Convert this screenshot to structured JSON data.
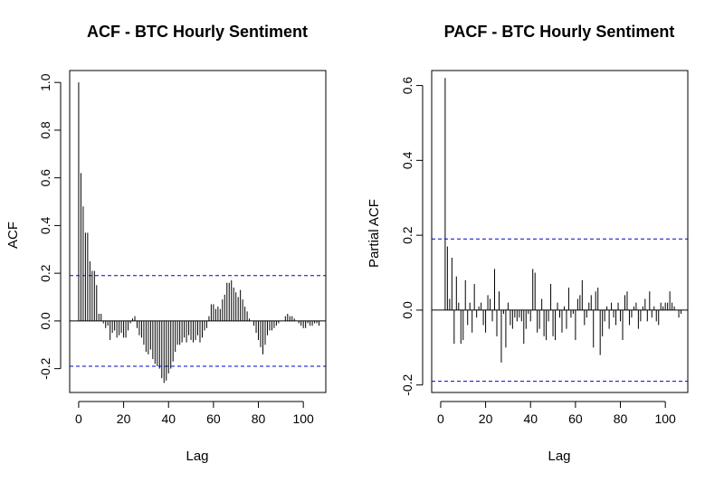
{
  "chart_data": [
    {
      "type": "bar",
      "title": "ACF - BTC Hourly Sentiment",
      "xlabel": "Lag",
      "ylabel": "ACF",
      "xlim": [
        -4,
        110
      ],
      "ylim": [
        -0.3,
        1.05
      ],
      "x_ticks": [
        0,
        20,
        40,
        60,
        80,
        100
      ],
      "y_ticks": [
        -0.2,
        0.0,
        0.2,
        0.4,
        0.6,
        0.8,
        1.0
      ],
      "y_tick_labels": [
        "-0.2",
        "0.0",
        "0.2",
        "0.4",
        "0.6",
        "0.8",
        "1.0"
      ],
      "confidence_bounds": [
        0.19,
        -0.19
      ],
      "bound_color": "#0000cc",
      "bar_color": "#000000",
      "grid": false,
      "lag_start": 0,
      "values": [
        1.0,
        0.62,
        0.48,
        0.37,
        0.37,
        0.25,
        0.21,
        0.21,
        0.15,
        0.03,
        0.03,
        -0.01,
        -0.03,
        -0.02,
        -0.08,
        -0.05,
        -0.04,
        -0.07,
        -0.06,
        -0.05,
        -0.07,
        -0.07,
        -0.04,
        -0.01,
        0.01,
        0.02,
        -0.03,
        -0.06,
        -0.07,
        -0.1,
        -0.13,
        -0.14,
        -0.12,
        -0.16,
        -0.18,
        -0.19,
        -0.2,
        -0.24,
        -0.26,
        -0.25,
        -0.22,
        -0.2,
        -0.17,
        -0.13,
        -0.1,
        -0.1,
        -0.09,
        -0.07,
        -0.09,
        -0.06,
        -0.08,
        -0.09,
        -0.08,
        -0.06,
        -0.09,
        -0.07,
        -0.04,
        -0.03,
        0.02,
        0.07,
        0.07,
        0.05,
        0.06,
        0.05,
        0.09,
        0.11,
        0.16,
        0.16,
        0.17,
        0.14,
        0.12,
        0.1,
        0.13,
        0.09,
        0.06,
        0.04,
        0.01,
        0.0,
        -0.02,
        -0.05,
        -0.08,
        -0.11,
        -0.14,
        -0.1,
        -0.06,
        -0.04,
        -0.04,
        -0.03,
        -0.02,
        -0.01,
        0.0,
        0.0,
        0.02,
        0.03,
        0.02,
        0.02,
        0.01,
        0.0,
        -0.01,
        -0.02,
        -0.03,
        -0.03,
        -0.01,
        -0.02,
        -0.02,
        -0.01,
        -0.01,
        -0.02
      ]
    },
    {
      "type": "bar",
      "title": "PACF - BTC Hourly Sentiment",
      "xlabel": "Lag",
      "ylabel": "Partial ACF",
      "xlim": [
        -4,
        110
      ],
      "ylim": [
        -0.22,
        0.64
      ],
      "x_ticks": [
        0,
        20,
        40,
        60,
        80,
        100
      ],
      "y_ticks": [
        -0.2,
        0.0,
        0.2,
        0.4,
        0.6
      ],
      "y_tick_labels": [
        "-0.2",
        "0.0",
        "0.2",
        "0.4",
        "0.6"
      ],
      "confidence_bounds": [
        0.19,
        -0.19
      ],
      "bound_color": "#0000cc",
      "bar_color": "#000000",
      "grid": false,
      "lag_start": 2,
      "values": [
        0.62,
        0.17,
        0.03,
        0.14,
        -0.09,
        0.09,
        0.02,
        -0.09,
        -0.08,
        0.08,
        -0.04,
        0.02,
        -0.06,
        0.07,
        -0.02,
        0.01,
        0.02,
        -0.04,
        -0.06,
        0.04,
        0.03,
        -0.03,
        0.11,
        -0.07,
        0.05,
        -0.14,
        -0.01,
        -0.1,
        0.02,
        -0.04,
        -0.05,
        -0.02,
        -0.03,
        -0.02,
        -0.03,
        -0.09,
        -0.05,
        -0.01,
        -0.03,
        0.11,
        0.1,
        -0.06,
        -0.05,
        0.03,
        -0.07,
        -0.08,
        -0.03,
        0.07,
        -0.07,
        -0.08,
        0.02,
        -0.02,
        -0.06,
        0.01,
        -0.05,
        0.06,
        -0.02,
        -0.01,
        -0.08,
        0.03,
        0.04,
        0.08,
        -0.04,
        -0.02,
        0.02,
        0.04,
        -0.1,
        0.05,
        0.06,
        -0.12,
        -0.07,
        -0.03,
        0.01,
        -0.05,
        0.02,
        -0.02,
        -0.04,
        0.02,
        -0.03,
        -0.08,
        0.04,
        0.05,
        -0.04,
        -0.02,
        0.01,
        0.02,
        -0.05,
        -0.03,
        0.01,
        0.03,
        -0.03,
        0.05,
        -0.02,
        0.01,
        -0.03,
        -0.04,
        0.02,
        0.01,
        0.02,
        0.02,
        0.05,
        0.02,
        0.01,
        0.0,
        -0.02,
        -0.01
      ]
    }
  ]
}
